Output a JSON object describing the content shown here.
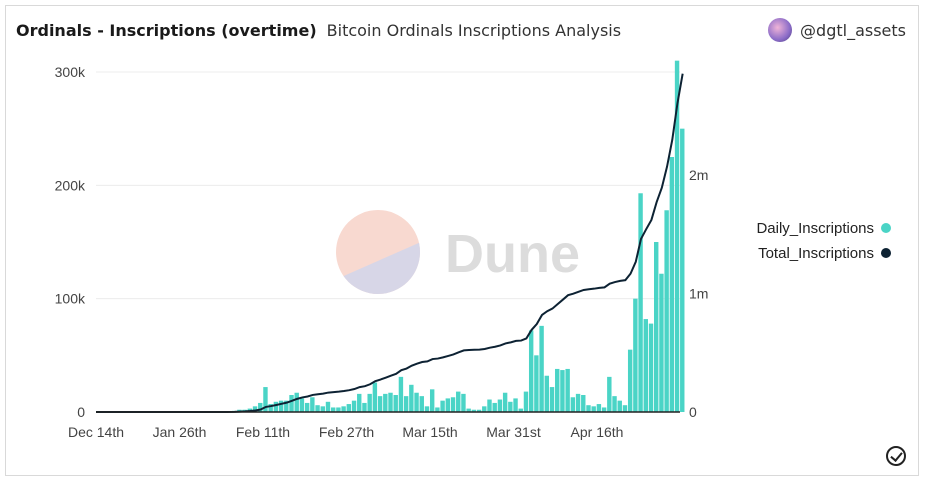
{
  "header": {
    "title": "Ordinals - Inscriptions (overtime)",
    "subtitle": "Bitcoin Ordinals Inscriptions Analysis",
    "author": "@dgtl_assets"
  },
  "watermark": "Dune",
  "chart_data": {
    "type": "bar+line",
    "x_tick_labels": [
      "Dec 14th",
      "Jan 26th",
      "Feb 11th",
      "Feb 27th",
      "Mar 15th",
      "Mar 31st",
      "Apr 16th"
    ],
    "y_left": {
      "ticks": [
        "0",
        "100k",
        "200k",
        "300k"
      ],
      "range": [
        0,
        300000
      ]
    },
    "y_right": {
      "ticks": [
        "0",
        "1m",
        "2m"
      ],
      "range": [
        0,
        2870000
      ]
    },
    "grid": true,
    "legend": {
      "position": "right",
      "entries": [
        {
          "name": "Daily_Inscriptions",
          "color": "#4ad4c6"
        },
        {
          "name": "Total_Inscriptions",
          "color": "#0d2233"
        }
      ]
    },
    "start_date": "Feb 5th",
    "series": [
      {
        "name": "Daily_Inscriptions",
        "type": "bar",
        "unit": "k",
        "values": [
          1,
          2,
          2,
          3,
          5,
          8,
          22,
          7,
          9,
          10,
          10,
          15,
          17,
          12,
          8,
          13,
          6,
          5,
          9,
          4,
          4,
          5,
          7,
          10,
          16,
          8,
          16,
          26,
          14,
          16,
          17,
          15,
          31,
          14,
          24,
          17,
          14,
          5,
          20,
          4,
          10,
          12,
          13,
          18,
          16,
          3,
          2,
          2,
          5,
          11,
          8,
          11,
          17,
          9,
          12,
          3,
          18,
          72,
          50,
          76,
          32,
          22,
          38,
          37,
          38,
          13,
          16,
          15,
          6,
          5,
          7,
          4,
          31,
          14,
          10,
          6,
          55,
          100,
          193,
          82,
          78,
          150,
          122,
          178,
          225,
          310,
          250
        ]
      },
      {
        "name": "Total_Inscriptions",
        "type": "line",
        "note": "cumulative of Daily_Inscriptions"
      }
    ]
  }
}
